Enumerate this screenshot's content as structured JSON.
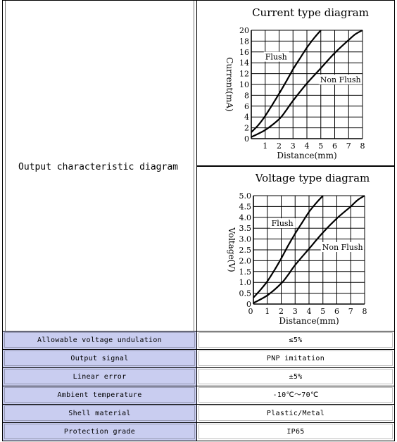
{
  "output_characteristic_label": "Output characteristic diagram",
  "charts": [
    {
      "type": "line",
      "title": "Current type diagram",
      "xlabel": "Distance(mm)",
      "ylabel": "Current(mA)",
      "xlim": [
        0,
        8
      ],
      "ylim": [
        0,
        20
      ],
      "xticks": [
        "1",
        "2",
        "3",
        "4",
        "5",
        "6",
        "7",
        "8"
      ],
      "yticks": [
        "0",
        "2",
        "4",
        "6",
        "8",
        "10",
        "12",
        "14",
        "16",
        "18",
        "20"
      ],
      "series": [
        {
          "name": "Flush",
          "x": [
            0,
            0.5,
            1,
            1.5,
            2,
            2.5,
            3,
            3.5,
            4,
            4.5,
            5
          ],
          "y": [
            1.2,
            2.5,
            4.2,
            6.2,
            8.3,
            10.5,
            12.8,
            14.8,
            16.8,
            18.5,
            20
          ]
        },
        {
          "name": "Non Flush",
          "x": [
            0,
            1,
            2,
            2.5,
            3,
            4,
            5,
            6,
            7,
            7.5,
            8
          ],
          "y": [
            0.3,
            1.6,
            3.6,
            5.2,
            7.0,
            10.2,
            13.0,
            15.8,
            18.2,
            19.3,
            20
          ]
        }
      ]
    },
    {
      "type": "line",
      "title": "Voltage type diagram",
      "xlabel": "Distance(mm)",
      "ylabel": "Voltage(V)",
      "xlim": [
        0,
        8
      ],
      "ylim": [
        0,
        5
      ],
      "xticks": [
        "0",
        "1",
        "2",
        "3",
        "4",
        "5",
        "6",
        "7",
        "8"
      ],
      "yticks": [
        "0",
        "0.5",
        "1.0",
        "1.5",
        "2.0",
        "2.5",
        "3.0",
        "3.5",
        "4.0",
        "4.5",
        "5.0"
      ],
      "series": [
        {
          "name": "Flush",
          "x": [
            0,
            0.5,
            1,
            1.5,
            2,
            2.5,
            3,
            3.5,
            4,
            4.5,
            5
          ],
          "y": [
            0.3,
            0.65,
            1.05,
            1.55,
            2.1,
            2.7,
            3.25,
            3.75,
            4.25,
            4.65,
            5.0
          ]
        },
        {
          "name": "Non Flush",
          "x": [
            0,
            1,
            2,
            2.5,
            3,
            4,
            5,
            6,
            7,
            7.5,
            8
          ],
          "y": [
            0.05,
            0.4,
            0.95,
            1.35,
            1.8,
            2.55,
            3.3,
            3.95,
            4.5,
            4.8,
            5.0
          ]
        }
      ]
    }
  ],
  "specs": [
    {
      "key": "Allowable voltage undulation",
      "value": "≤5%"
    },
    {
      "key": "Output signal",
      "value": "PNP imitation"
    },
    {
      "key": "Linear error",
      "value": "±5%"
    },
    {
      "key": "Ambient temperature",
      "value": "-10℃～70℃"
    },
    {
      "key": "Shell material",
      "value": "Plastic/Metal"
    },
    {
      "key": "Protection grade",
      "value": "IP65"
    }
  ]
}
